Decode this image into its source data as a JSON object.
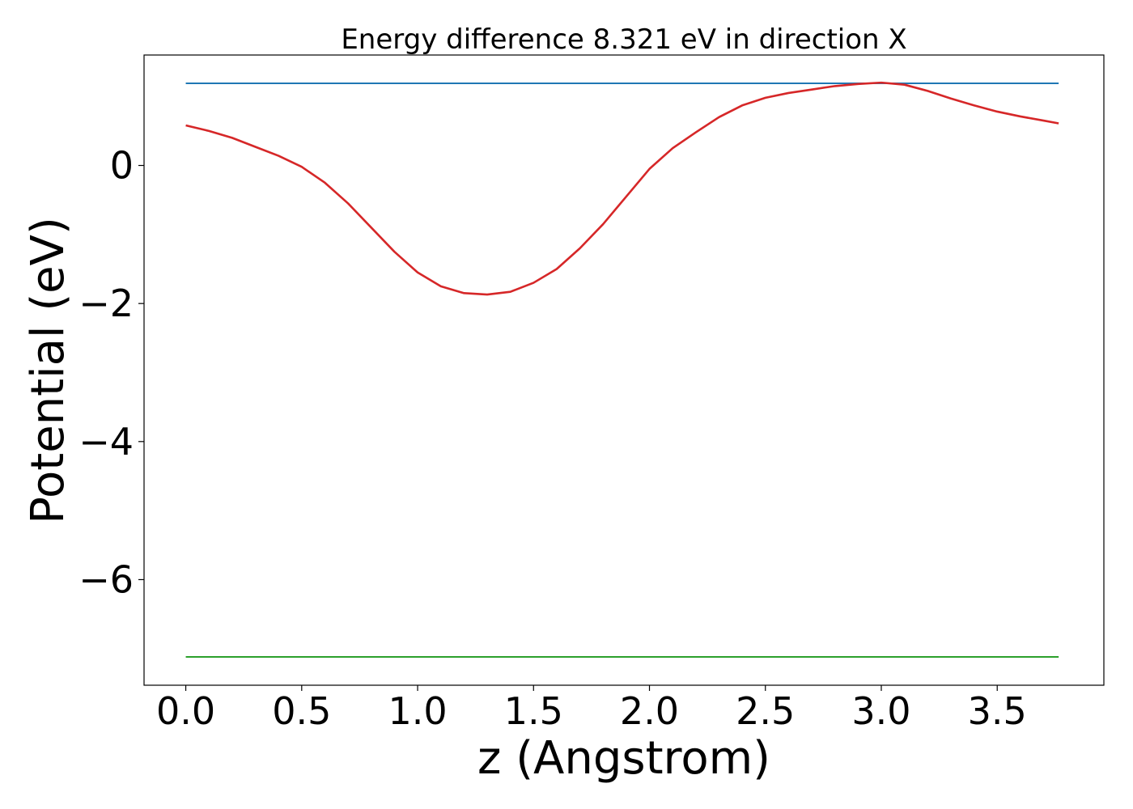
{
  "chart_data": {
    "type": "line",
    "title": "Energy difference 8.321 eV in direction X",
    "xlabel": "z (Angstrom)",
    "ylabel": "Potential (eV)",
    "xlim": [
      -0.18,
      3.96
    ],
    "ylim": [
      -7.53,
      1.6
    ],
    "xticks": [
      0.0,
      0.5,
      1.0,
      1.5,
      2.0,
      2.5,
      3.0,
      3.5
    ],
    "xtick_labels": [
      "0.0",
      "0.5",
      "1.0",
      "1.5",
      "2.0",
      "2.5",
      "3.0",
      "3.5"
    ],
    "yticks": [
      0,
      -2,
      -4,
      -6
    ],
    "ytick_labels": [
      "0",
      "−2",
      "−4",
      "−6"
    ],
    "grid": false,
    "legend": "none",
    "series": [
      {
        "color": "#1f77b4",
        "x": [
          0.0,
          3.765
        ],
        "y": [
          1.19,
          1.19
        ]
      },
      {
        "color": "#d62728",
        "x": [
          0.0,
          0.1,
          0.2,
          0.3,
          0.4,
          0.5,
          0.6,
          0.7,
          0.8,
          0.9,
          1.0,
          1.1,
          1.2,
          1.3,
          1.4,
          1.5,
          1.6,
          1.7,
          1.8,
          1.9,
          2.0,
          2.1,
          2.2,
          2.3,
          2.4,
          2.5,
          2.6,
          2.7,
          2.8,
          2.9,
          3.0,
          3.1,
          3.2,
          3.3,
          3.4,
          3.5,
          3.6,
          3.7,
          3.765
        ],
        "y": [
          0.58,
          0.5,
          0.4,
          0.27,
          0.14,
          -0.02,
          -0.25,
          -0.55,
          -0.9,
          -1.25,
          -1.55,
          -1.75,
          -1.85,
          -1.87,
          -1.83,
          -1.7,
          -1.5,
          -1.2,
          -0.85,
          -0.45,
          -0.05,
          0.25,
          0.48,
          0.7,
          0.87,
          0.98,
          1.05,
          1.1,
          1.15,
          1.18,
          1.2,
          1.17,
          1.08,
          0.97,
          0.87,
          0.78,
          0.71,
          0.65,
          0.61
        ]
      },
      {
        "color": "#2ca02c",
        "x": [
          0.0,
          3.765
        ],
        "y": [
          -7.12,
          -7.12
        ]
      }
    ]
  }
}
